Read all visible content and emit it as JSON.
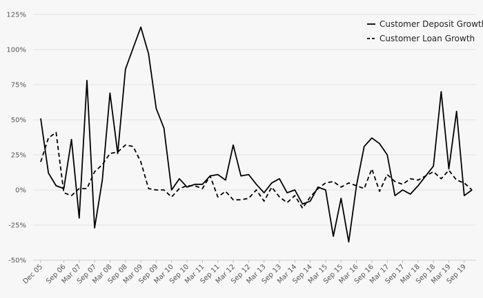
{
  "chart_data": {
    "type": "line",
    "x": [
      "Dec 05",
      "Mar 06",
      "Jun 06",
      "Sep 06",
      "Dec 06",
      "Mar 07",
      "Jun 07",
      "Sep 07",
      "Dec 07",
      "Mar 08",
      "Jun 08",
      "Sep 08",
      "Dec 08",
      "Mar 09",
      "Jun 09",
      "Sep 09",
      "Dec 09",
      "Mar 10",
      "Jun 10",
      "Sep 10",
      "Dec 10",
      "Mar 11",
      "Jun 11",
      "Sep 11",
      "Dec 11",
      "Mar 12",
      "Jun 12",
      "Sep 12",
      "Dec 12",
      "Mar 13",
      "Jun 13",
      "Sep 13",
      "Dec 13",
      "Mar 14",
      "Jun 14",
      "Sep 14",
      "Dec 14",
      "Mar 15",
      "Jun 15",
      "Sep 15",
      "Dec 15",
      "Mar 16",
      "Jun 16",
      "Sep 16",
      "Dec 16",
      "Mar 17",
      "Jun 17",
      "Sep 17",
      "Dec 17",
      "Mar 18",
      "Jun 18",
      "Sep 18",
      "Dec 18",
      "Mar 19",
      "Jun 19",
      "Sep 19",
      "Dec 19"
    ],
    "x_tick_labels": [
      "Dec 05",
      "Sep 06",
      "Mar 07",
      "Sep 07",
      "Mar 08",
      "Sep 08",
      "Mar 09",
      "Sep 09",
      "Mar 10",
      "Sep 10",
      "Mar 11",
      "Sep 11",
      "Mar 12",
      "Sep 12",
      "Mar 13",
      "Sep 13",
      "Mar 14",
      "Sep 14",
      "Mar 15",
      "Sep 15",
      "Mar 16",
      "Sep 16",
      "Mar 17",
      "Sep 17",
      "Mar 18",
      "Sep 18",
      "Mar 19",
      "Sep 19"
    ],
    "y_tick_labels": [
      "125%",
      "100%",
      "75%",
      "50%",
      "25%",
      "0%",
      "-25%",
      "-50%"
    ],
    "ylim": [
      -50,
      125
    ],
    "series": [
      {
        "name": "Customer Deposit Growth",
        "style": "solid",
        "values": [
          51,
          12,
          3,
          1,
          36,
          -20,
          78,
          -27,
          7,
          69,
          26,
          86,
          101,
          116,
          97,
          58,
          44,
          0,
          8,
          2,
          4,
          4,
          10,
          11,
          7,
          32,
          10,
          11,
          4,
          -2,
          5,
          8,
          -2,
          0,
          -10,
          -8,
          2,
          0,
          -33,
          -6,
          -37,
          3,
          31,
          37,
          33,
          25,
          -4,
          0,
          -3,
          3,
          10,
          17,
          70,
          15,
          56,
          -4,
          0
        ]
      },
      {
        "name": "Customer Loan Growth",
        "style": "dashed",
        "values": [
          20,
          37,
          41,
          -2,
          -4,
          1,
          1,
          13,
          18,
          26,
          27,
          32,
          31,
          20,
          1,
          0,
          0,
          -5,
          1,
          3,
          3,
          1,
          10,
          -5,
          -1,
          -7,
          -7,
          -6,
          0,
          -8,
          2,
          -5,
          -9,
          -4,
          -13,
          -5,
          1,
          5,
          6,
          2,
          5,
          3,
          1,
          15,
          -1,
          11,
          6,
          4,
          8,
          7,
          10,
          13,
          8,
          14,
          7,
          5,
          0
        ]
      }
    ],
    "legend": [
      "Customer Deposit Growth",
      "Customer Loan Growth"
    ],
    "legend_position": "top-right",
    "grid": true,
    "colors": {
      "line": "#000000",
      "grid": "#e3e3e3",
      "background": "#f7f7f7",
      "axis_text": "#555555"
    }
  }
}
